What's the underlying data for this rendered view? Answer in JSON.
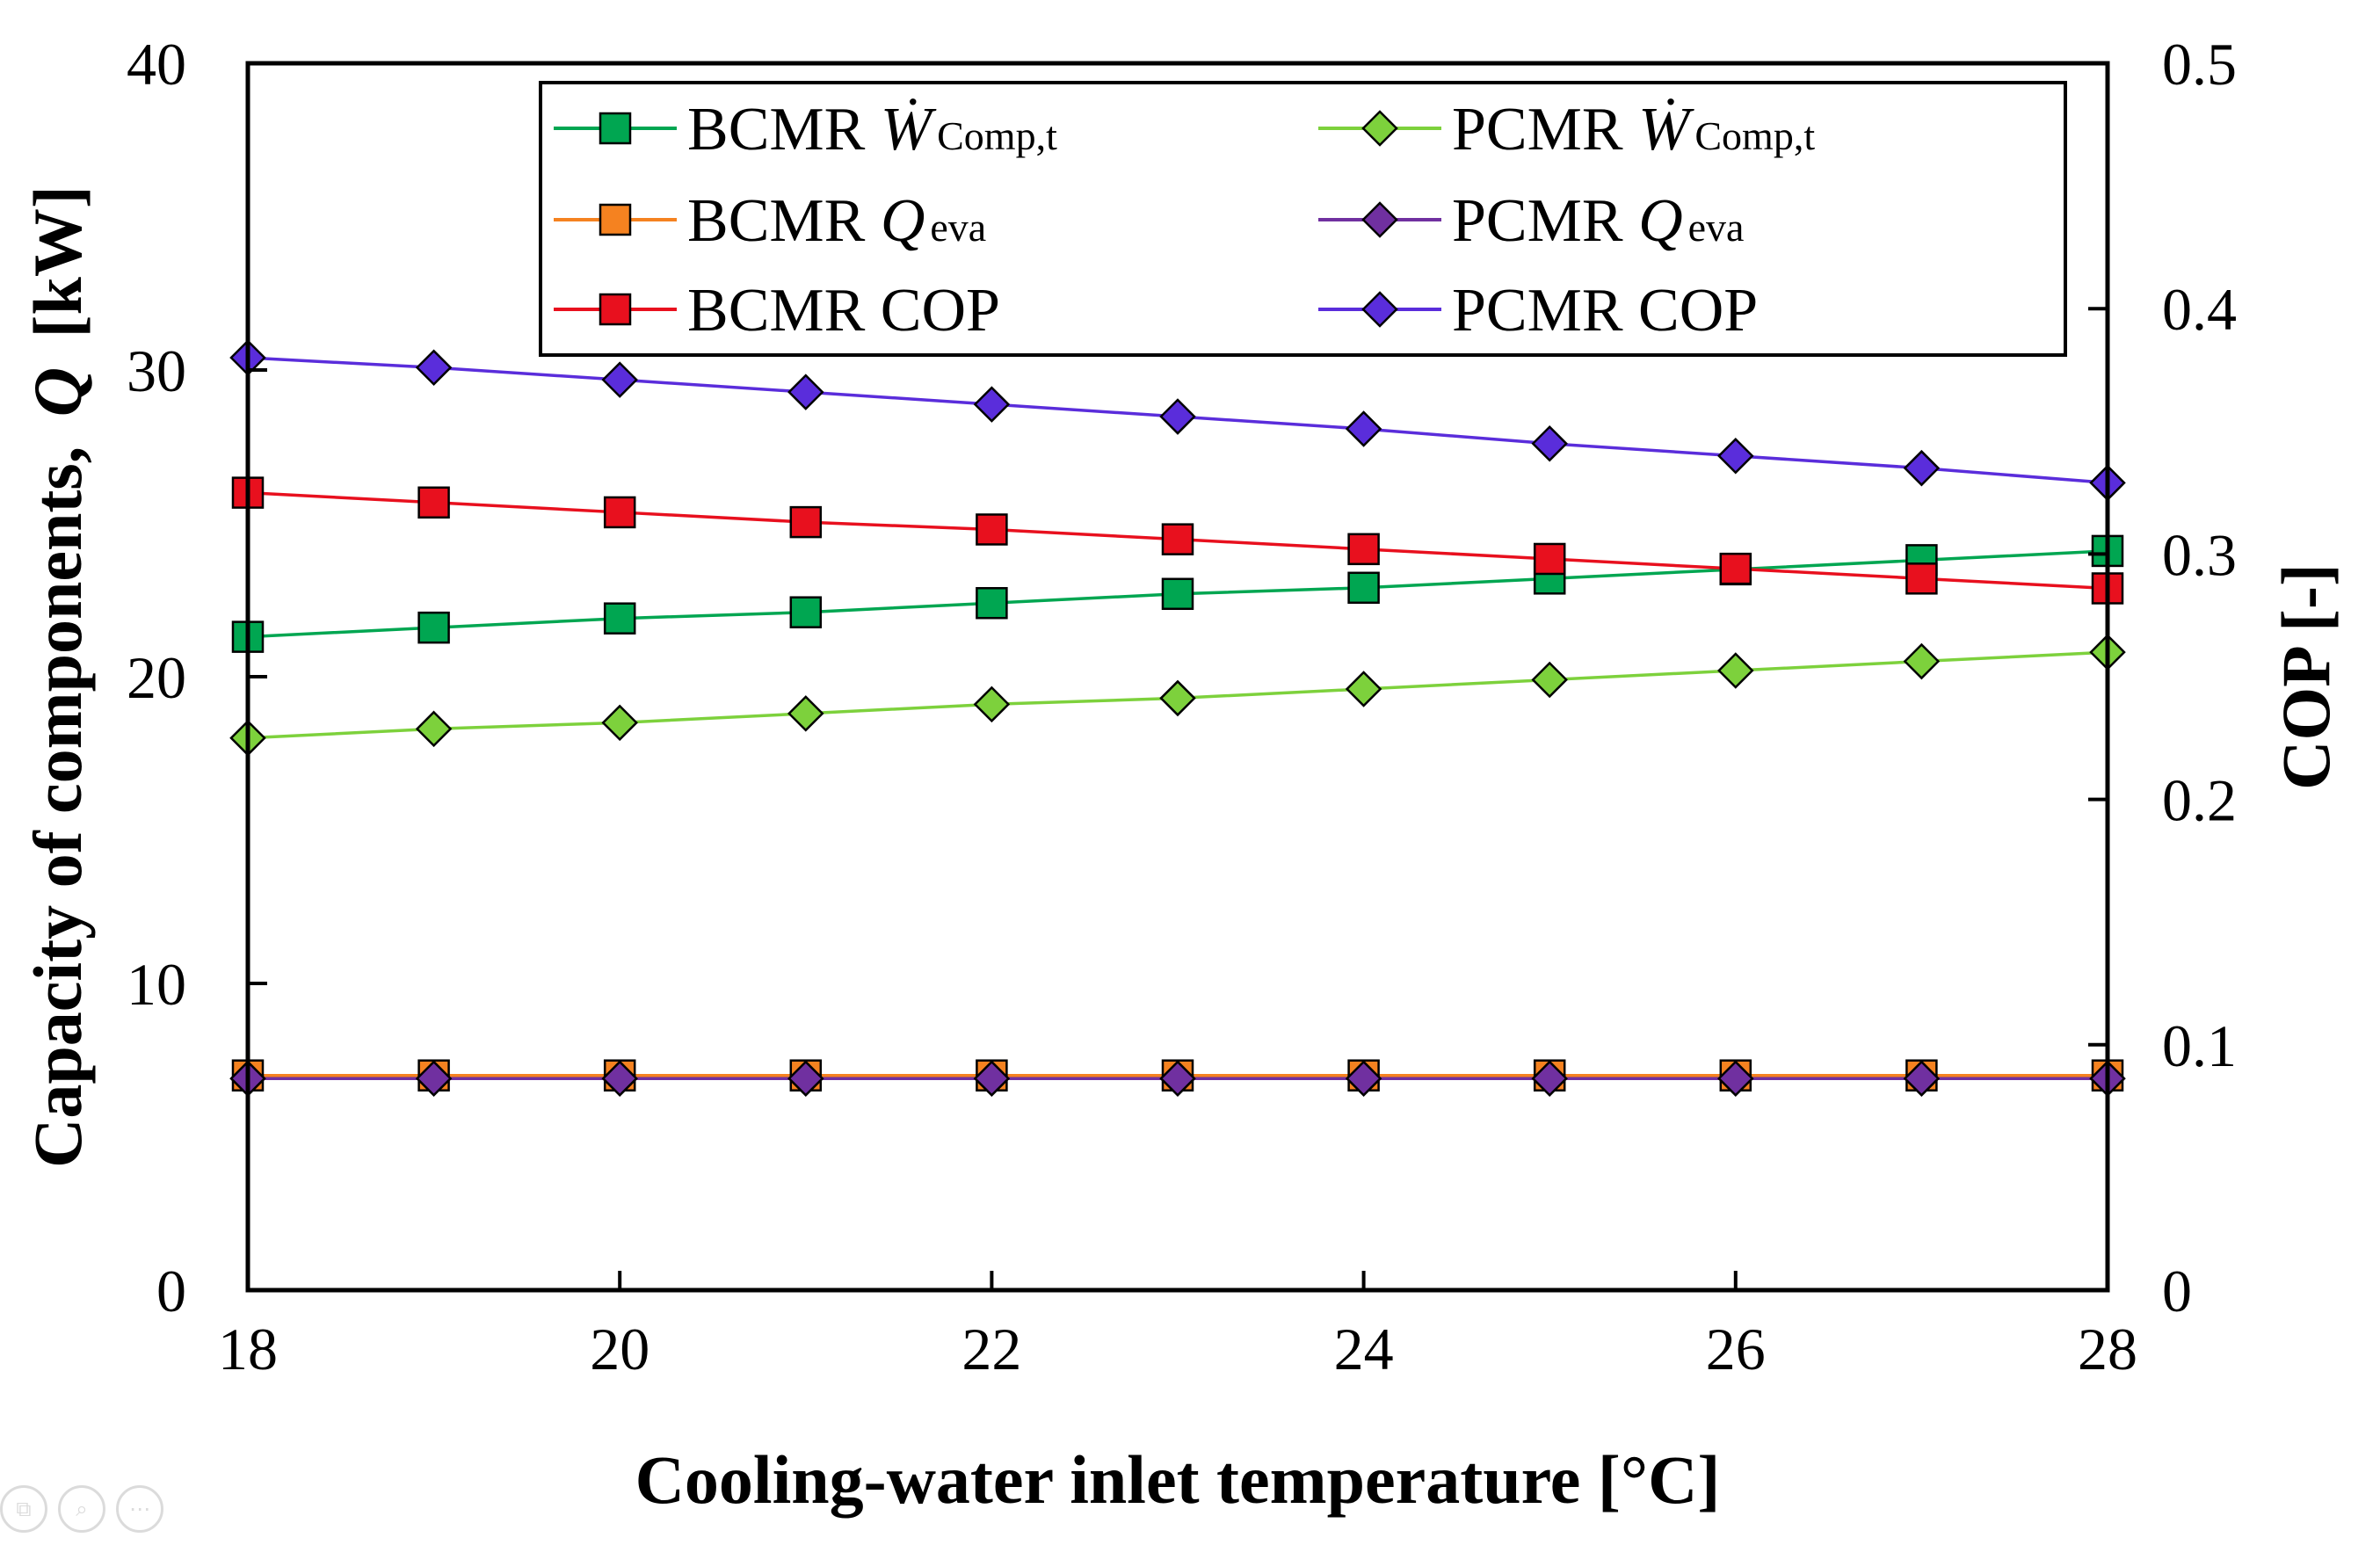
{
  "chart_data": {
    "type": "line",
    "x": [
      18,
      19,
      20,
      21,
      22,
      23,
      24,
      25,
      26,
      27,
      28
    ],
    "xlabel": "Cooling-water  inlet temperature [°C]",
    "ylabel_main": "Capacity of components,",
    "ylabel_symbol": "Q",
    "ylabel_unit": "[kW]",
    "y2label": "COP [-]",
    "xlim": [
      18,
      28
    ],
    "ylim": [
      0,
      40
    ],
    "y2lim": [
      0,
      0.5
    ],
    "xticks": [
      "18",
      "20",
      "22",
      "24",
      "26",
      "28"
    ],
    "yticks": [
      "0",
      "10",
      "20",
      "30",
      "40"
    ],
    "y2ticks": [
      "0",
      "0.1",
      "0.2",
      "0.3",
      "0.4",
      "0.5"
    ],
    "legend_position": "top",
    "series": [
      {
        "id": "bcmr-w",
        "prefix": "BCMR ",
        "symbol": "Ẇ",
        "sub": "Comp,t",
        "axis": "left",
        "marker": "square",
        "color": "#00A651",
        "values": [
          21.3,
          21.6,
          21.9,
          22.1,
          22.4,
          22.7,
          22.9,
          23.2,
          23.5,
          23.8,
          24.1
        ]
      },
      {
        "id": "pcmr-w",
        "prefix": "PCMR ",
        "symbol": "Ẇ",
        "sub": "Comp,t",
        "axis": "left",
        "marker": "diamond",
        "color": "#7DD13C",
        "values": [
          18.0,
          18.3,
          18.5,
          18.8,
          19.1,
          19.3,
          19.6,
          19.9,
          20.2,
          20.5,
          20.8
        ]
      },
      {
        "id": "bcmr-q",
        "prefix": "BCMR ",
        "symbol": "Q",
        "sub": "eva",
        "axis": "left",
        "marker": "square",
        "color": "#F58220",
        "values": [
          7.0,
          7.0,
          7.0,
          7.0,
          7.0,
          7.0,
          7.0,
          7.0,
          7.0,
          7.0,
          7.0
        ]
      },
      {
        "id": "pcmr-q",
        "prefix": "PCMR ",
        "symbol": "Q",
        "sub": "eva",
        "axis": "left",
        "marker": "diamond",
        "color": "#7030A0",
        "values": [
          6.9,
          6.9,
          6.9,
          6.9,
          6.9,
          6.9,
          6.9,
          6.9,
          6.9,
          6.9,
          6.9
        ]
      },
      {
        "id": "bcmr-cop",
        "prefix": "BCMR COP",
        "symbol": "",
        "sub": "",
        "axis": "right",
        "marker": "square",
        "color": "#E8101E",
        "values": [
          0.325,
          0.321,
          0.317,
          0.313,
          0.31,
          0.306,
          0.302,
          0.298,
          0.294,
          0.29,
          0.286
        ]
      },
      {
        "id": "pcmr-cop",
        "prefix": "PCMR COP",
        "symbol": "",
        "sub": "",
        "axis": "right",
        "marker": "diamond",
        "color": "#5A2DDB",
        "values": [
          0.38,
          0.376,
          0.371,
          0.366,
          0.361,
          0.356,
          0.351,
          0.345,
          0.34,
          0.335,
          0.329
        ]
      }
    ]
  },
  "viewer_icons": [
    "copy-icon",
    "zoom-icon",
    "more-icon"
  ]
}
